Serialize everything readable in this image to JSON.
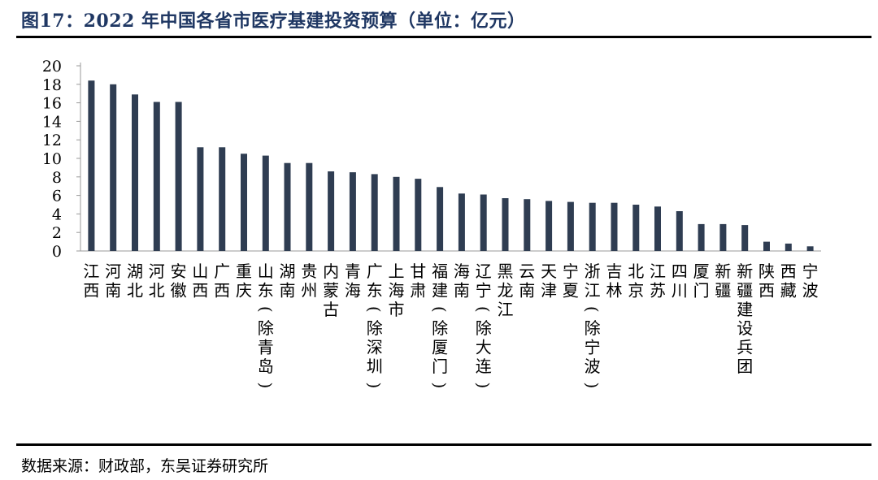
{
  "header": {
    "title": "图17：2022 年中国各省市医疗基建投资预算（单位：亿元）"
  },
  "footer": {
    "source": "数据来源：财政部，东吴证券研究所"
  },
  "colors": {
    "bar": "#2f3d52",
    "axis": "#9a9a9a",
    "title": "#1f3763",
    "rule": "#000000"
  },
  "chart_data": {
    "type": "bar",
    "title": "",
    "xlabel": "",
    "ylabel": "",
    "ylim": [
      0,
      20
    ],
    "yticks": [
      0,
      2,
      4,
      6,
      8,
      10,
      12,
      14,
      16,
      18,
      20
    ],
    "grid": false,
    "legend": "none",
    "categories": [
      "江西",
      "河南",
      "湖北",
      "河北",
      "安徽",
      "山西",
      "广西",
      "重庆",
      "山东（除青岛）",
      "湖南",
      "贵州",
      "内蒙古",
      "青海",
      "广东（除深圳）",
      "上海市",
      "甘肃",
      "福建（除厦门）",
      "海南",
      "辽宁（除大连）",
      "黑龙江",
      "云南",
      "天津",
      "宁夏",
      "浙江（除宁波）",
      "吉林",
      "北京",
      "江苏",
      "四川",
      "厦门",
      "新疆",
      "新疆建设兵团",
      "陕西",
      "西藏",
      "宁波"
    ],
    "values": [
      18.4,
      18.0,
      16.9,
      16.1,
      16.1,
      11.2,
      11.2,
      10.5,
      10.3,
      9.5,
      9.5,
      8.6,
      8.5,
      8.3,
      8.0,
      7.8,
      6.9,
      6.2,
      6.1,
      5.7,
      5.6,
      5.4,
      5.3,
      5.2,
      5.2,
      5.0,
      4.8,
      4.3,
      2.9,
      2.9,
      2.8,
      1.0,
      0.8,
      0.5
    ]
  }
}
